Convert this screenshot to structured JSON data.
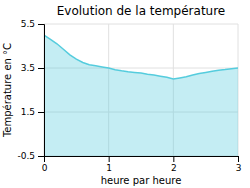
{
  "chart_data": {
    "type": "area",
    "title": "Evolution de la température",
    "x_label": "heure par heure",
    "y_label": "Température en °C",
    "x": [
      0,
      0.1,
      0.2,
      0.3,
      0.4,
      0.5,
      0.6,
      0.7,
      0.8,
      0.9,
      1.0,
      1.1,
      1.2,
      1.3,
      1.4,
      1.5,
      1.6,
      1.7,
      1.8,
      1.9,
      2.0,
      2.1,
      2.2,
      2.3,
      2.4,
      2.5,
      2.6,
      2.7,
      2.8,
      2.9,
      3.0
    ],
    "values": [
      5.0,
      4.8,
      4.6,
      4.35,
      4.1,
      3.9,
      3.75,
      3.65,
      3.6,
      3.55,
      3.5,
      3.42,
      3.37,
      3.33,
      3.3,
      3.27,
      3.22,
      3.18,
      3.13,
      3.08,
      3.0,
      3.05,
      3.1,
      3.18,
      3.25,
      3.3,
      3.35,
      3.4,
      3.43,
      3.47,
      3.5
    ],
    "baseline": -0.5,
    "color": "#55ccdd",
    "xlim": [
      0,
      3
    ],
    "ylim": [
      -0.5,
      5.5
    ],
    "xticks": [
      0,
      1,
      2,
      3
    ],
    "yticks": [
      -0.5,
      1.5,
      3.5,
      5.5
    ],
    "grid": true
  }
}
